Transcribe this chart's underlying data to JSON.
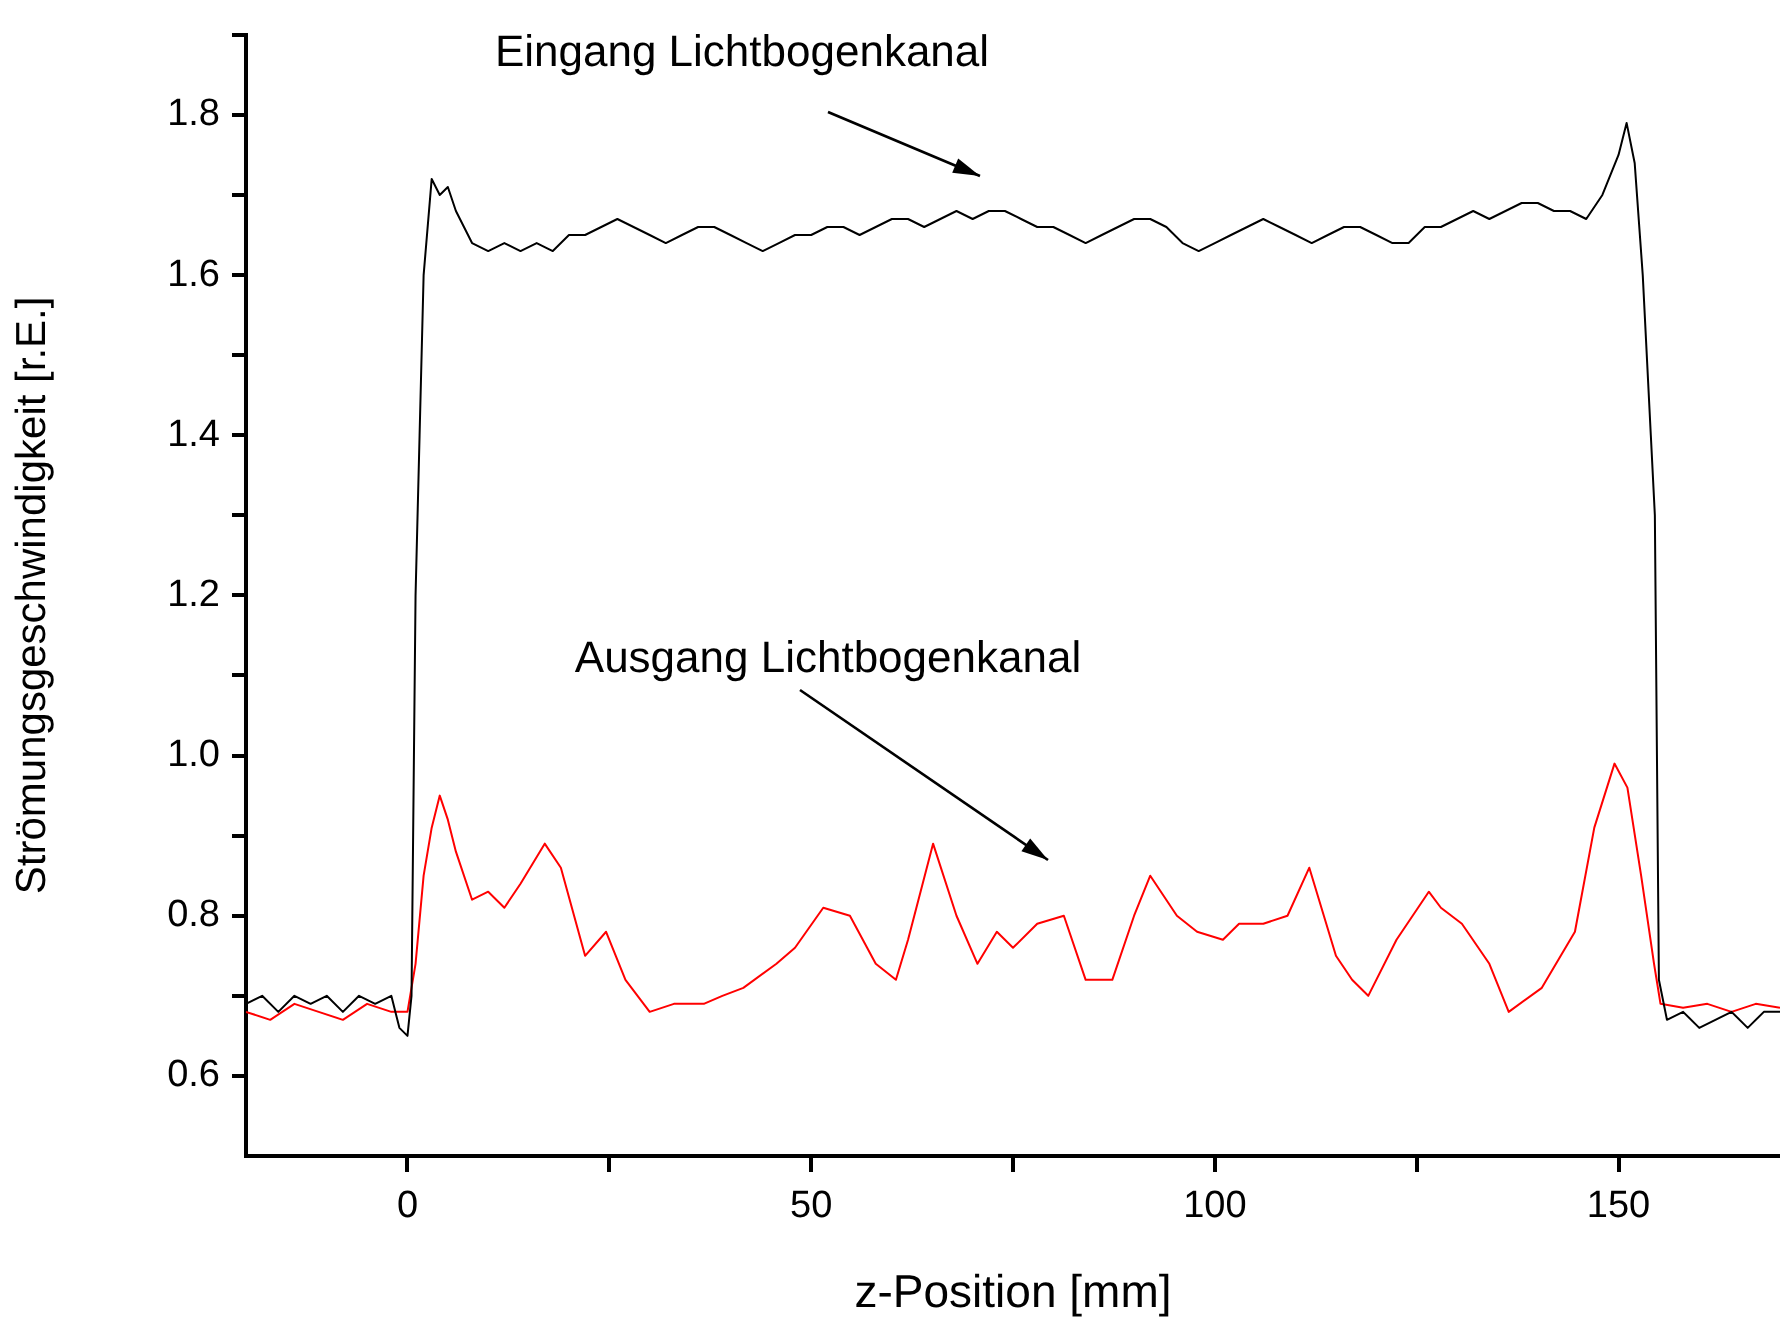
{
  "chart_data": {
    "type": "line",
    "xlabel": "z-Position [mm]",
    "ylabel": "Strömungsgeschwindigkeit [r.E.]",
    "xlim": [
      -20,
      170
    ],
    "xticks": [
      0,
      {
        "value": 25,
        "label": null
      },
      50,
      {
        "value": 75,
        "label": null
      },
      100,
      {
        "value": 125,
        "label": null
      },
      150
    ],
    "ylim": [
      0.5,
      1.9
    ],
    "yticks": [
      0.6,
      {
        "value": 0.7,
        "label": null
      },
      0.8,
      {
        "value": 0.9,
        "label": null
      },
      {
        "value": 1.0,
        "label": "1.0"
      },
      {
        "value": 1.1,
        "label": null
      },
      1.2,
      {
        "value": 1.3,
        "label": null
      },
      1.4,
      {
        "value": 1.5,
        "label": null
      },
      1.6,
      {
        "value": 1.7,
        "label": null
      },
      1.8,
      {
        "value": 1.9,
        "label": null
      }
    ],
    "grid": false,
    "legend": false,
    "marker": "none",
    "line_style": "solid",
    "series": [
      {
        "color": "#000000",
        "x": [
          -20,
          -18,
          -16,
          -14,
          -12,
          -10,
          -8,
          -6,
          -4,
          -2,
          -1,
          0,
          0.5,
          1,
          1.5,
          2,
          3,
          4,
          5,
          6,
          7,
          8,
          10,
          12,
          14,
          16,
          18,
          20,
          22,
          24,
          26,
          28,
          30,
          32,
          34,
          36,
          38,
          40,
          42,
          44,
          46,
          48,
          50,
          52,
          54,
          56,
          58,
          60,
          62,
          64,
          66,
          68,
          70,
          72,
          74,
          76,
          78,
          80,
          82,
          84,
          86,
          88,
          90,
          92,
          94,
          96,
          98,
          100,
          102,
          104,
          106,
          108,
          110,
          112,
          114,
          116,
          118,
          120,
          122,
          124,
          126,
          128,
          130,
          132,
          134,
          136,
          138,
          140,
          142,
          144,
          146,
          148,
          150,
          151,
          152,
          153,
          154,
          154.5,
          155,
          156,
          158,
          160,
          162,
          164,
          166,
          168,
          170
        ],
        "values": [
          0.69,
          0.7,
          0.68,
          0.7,
          0.69,
          0.7,
          0.68,
          0.7,
          0.69,
          0.7,
          0.66,
          0.65,
          0.7,
          1.2,
          1.4,
          1.6,
          1.72,
          1.7,
          1.71,
          1.68,
          1.66,
          1.64,
          1.63,
          1.64,
          1.63,
          1.64,
          1.63,
          1.65,
          1.65,
          1.66,
          1.67,
          1.66,
          1.65,
          1.64,
          1.65,
          1.66,
          1.66,
          1.65,
          1.64,
          1.63,
          1.64,
          1.65,
          1.65,
          1.66,
          1.66,
          1.65,
          1.66,
          1.67,
          1.67,
          1.66,
          1.67,
          1.68,
          1.67,
          1.68,
          1.68,
          1.67,
          1.66,
          1.66,
          1.65,
          1.64,
          1.65,
          1.66,
          1.67,
          1.67,
          1.66,
          1.64,
          1.63,
          1.64,
          1.65,
          1.66,
          1.67,
          1.66,
          1.65,
          1.64,
          1.65,
          1.66,
          1.66,
          1.65,
          1.64,
          1.64,
          1.66,
          1.66,
          1.67,
          1.68,
          1.67,
          1.68,
          1.69,
          1.69,
          1.68,
          1.68,
          1.67,
          1.7,
          1.75,
          1.79,
          1.74,
          1.6,
          1.4,
          1.3,
          0.72,
          0.67,
          0.68,
          0.66,
          0.67,
          0.68,
          0.66,
          0.68,
          0.68
        ]
      },
      {
        "color": "#ff0000",
        "x": [
          -20,
          -17,
          -14,
          -11,
          -8,
          -5,
          -2,
          0,
          1,
          2,
          3,
          4,
          5,
          6,
          8,
          10,
          12,
          14,
          17,
          19,
          22,
          24.6,
          27,
          30,
          33,
          36.7,
          39,
          41.6,
          45.7,
          48,
          51.5,
          54.8,
          58,
          60.5,
          62,
          65.1,
          68,
          70.6,
          73,
          75,
          78,
          81.3,
          84,
          87.3,
          90,
          92,
          95.3,
          97.8,
          101,
          103,
          106,
          109,
          111.7,
          115,
          117,
          119,
          122.5,
          126.5,
          128,
          130.6,
          134,
          136.4,
          140.5,
          144.6,
          147,
          149.5,
          151.1,
          152.8,
          154.4,
          155.2,
          158,
          161,
          164,
          167,
          170
        ],
        "values": [
          0.68,
          0.67,
          0.69,
          0.68,
          0.67,
          0.69,
          0.68,
          0.68,
          0.74,
          0.85,
          0.91,
          0.95,
          0.92,
          0.88,
          0.82,
          0.83,
          0.81,
          0.84,
          0.89,
          0.86,
          0.75,
          0.78,
          0.72,
          0.68,
          0.69,
          0.69,
          0.7,
          0.71,
          0.74,
          0.76,
          0.81,
          0.8,
          0.74,
          0.72,
          0.77,
          0.89,
          0.8,
          0.74,
          0.78,
          0.76,
          0.79,
          0.8,
          0.72,
          0.72,
          0.8,
          0.85,
          0.8,
          0.78,
          0.77,
          0.79,
          0.79,
          0.8,
          0.86,
          0.75,
          0.72,
          0.7,
          0.77,
          0.83,
          0.81,
          0.79,
          0.74,
          0.68,
          0.71,
          0.78,
          0.91,
          0.99,
          0.96,
          0.85,
          0.74,
          0.69,
          0.685,
          0.69,
          0.68,
          0.69,
          0.685
        ]
      }
    ],
    "annotations": [
      "Eingang Lichtbogenkanal",
      "Ausgang Lichtbogenkanal"
    ]
  }
}
